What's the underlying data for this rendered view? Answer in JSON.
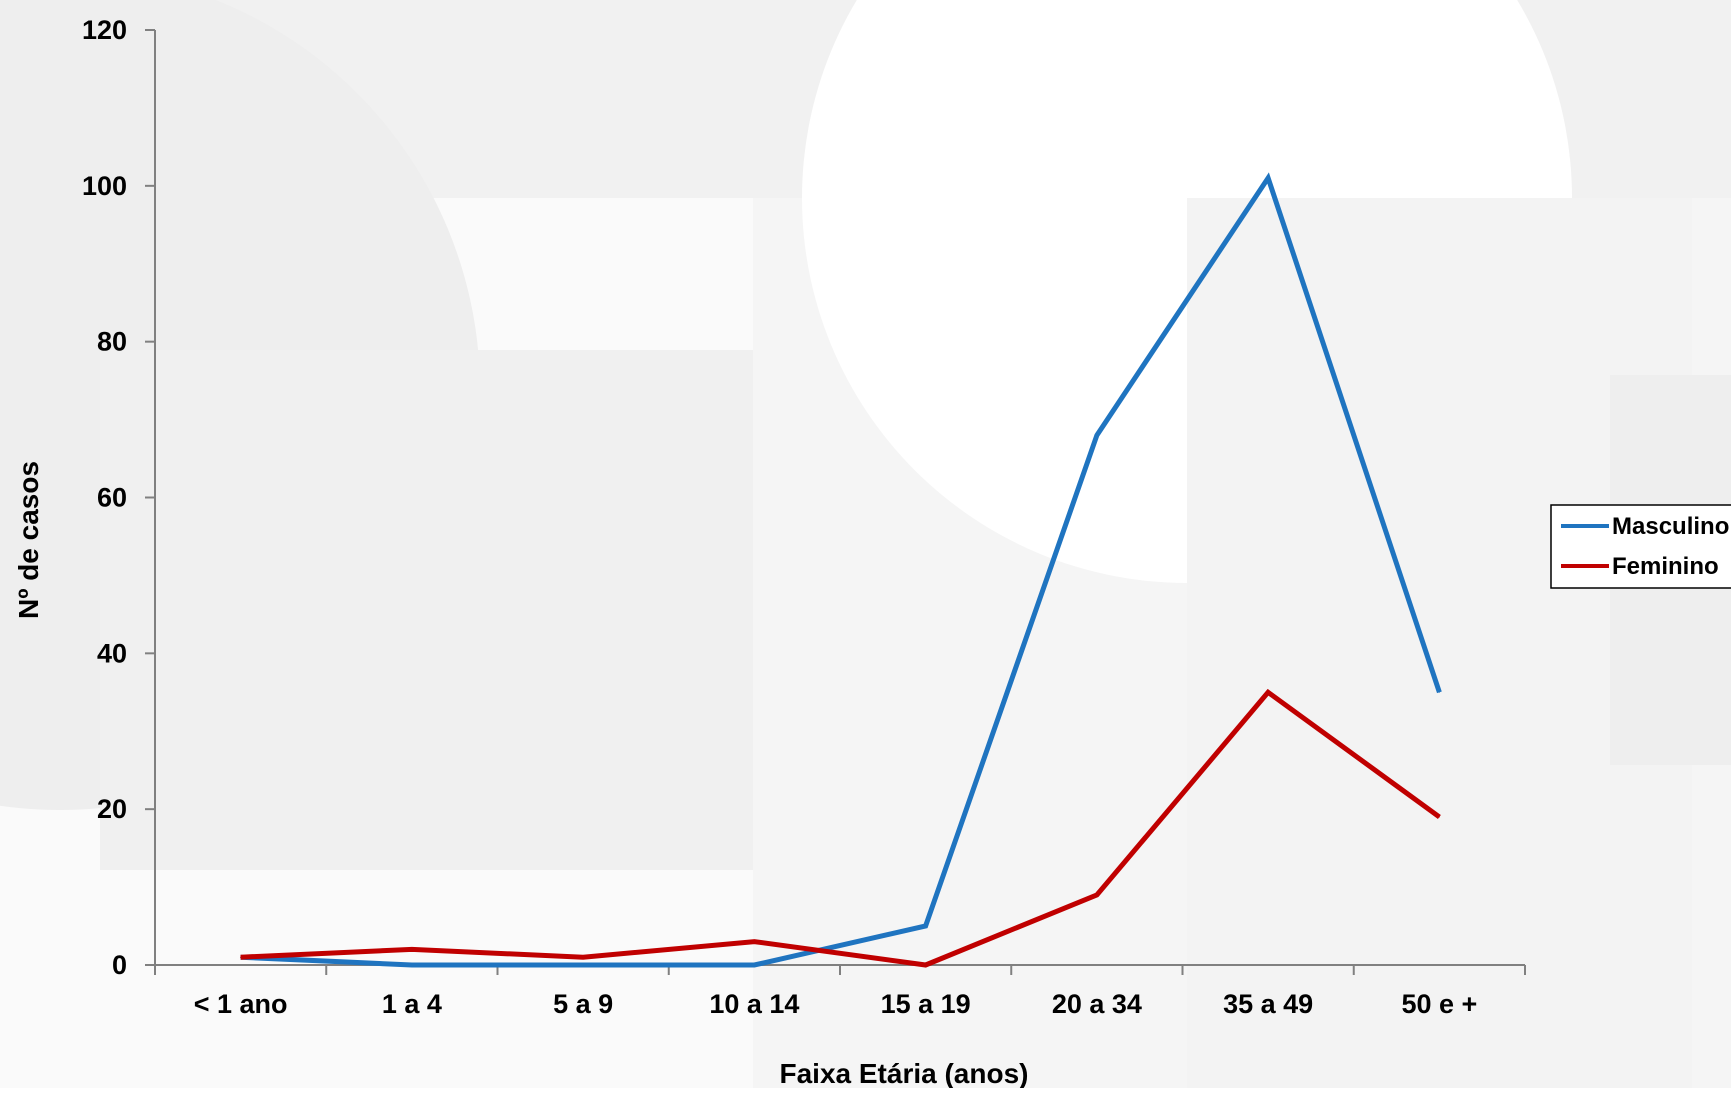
{
  "chart_data": {
    "type": "line",
    "title": "",
    "xlabel": "Faixa Etária (anos)",
    "ylabel": "Nº de casos",
    "categories": [
      "< 1 ano",
      "1 a 4",
      "5 a 9",
      "10 a 14",
      "15 a 19",
      "20 a 34",
      "35 a 49",
      "50 e +"
    ],
    "ylim": [
      0,
      120
    ],
    "yticks": [
      "0",
      "20",
      "40",
      "60",
      "80",
      "100",
      "120"
    ],
    "grid": false,
    "legend_position": "right",
    "series": [
      {
        "name": "Masculino",
        "color": "#1F74C0",
        "values": [
          1,
          0,
          0,
          0,
          5,
          68,
          101,
          35
        ]
      },
      {
        "name": "Feminino",
        "color": "#C00000",
        "values": [
          1,
          2,
          1,
          3,
          0,
          9,
          35,
          19
        ]
      }
    ]
  },
  "colors": {
    "axis": "#808080",
    "background_shapes": "#efefef"
  }
}
